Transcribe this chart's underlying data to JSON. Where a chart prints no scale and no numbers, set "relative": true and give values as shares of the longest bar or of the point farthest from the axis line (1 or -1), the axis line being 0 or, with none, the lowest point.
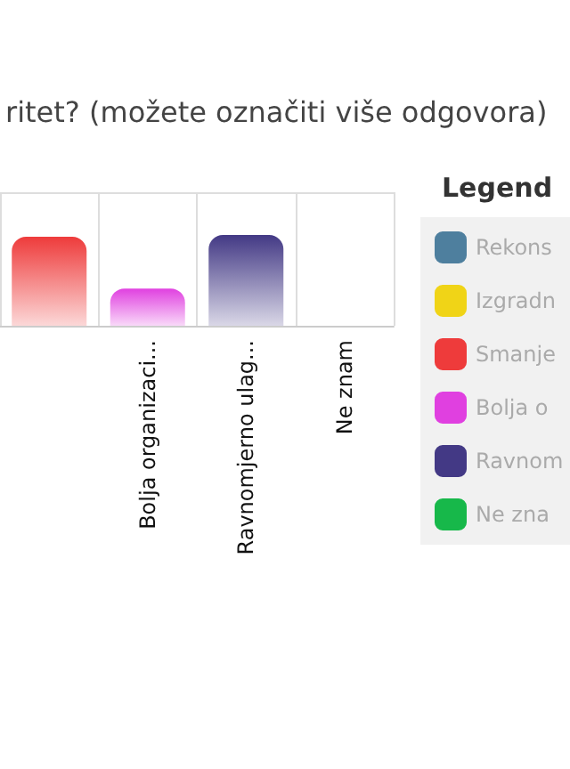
{
  "chart_data": {
    "type": "bar",
    "title": "ritet? (možete označiti više odgovora)",
    "legend_title": "Legend",
    "relative": true,
    "stacked": true,
    "grid": true,
    "legend": "right",
    "categories": [
      null,
      "Bolja organizaci...",
      "Ravnomjerno ulag...",
      "Ne znam"
    ],
    "series": [
      {
        "name": "Rekons",
        "color": "#4e7f9e",
        "values": [
          null,
          null,
          null,
          null
        ]
      },
      {
        "name": "Izgradn",
        "color": "#f0d417",
        "values": [
          null,
          null,
          null,
          null
        ]
      },
      {
        "name": "Smanje",
        "color": "#ee3b3b",
        "values": [
          0.98,
          null,
          null,
          null
        ]
      },
      {
        "name": "Bolja o",
        "color": "#e040e0",
        "values": [
          null,
          0.41,
          null,
          null
        ]
      },
      {
        "name": "Ravnom",
        "color": "#433985",
        "values": [
          null,
          null,
          1,
          null
        ]
      },
      {
        "name": "Ne zna",
        "color": "#17b84a",
        "values": [
          null,
          null,
          null,
          0
        ]
      }
    ]
  }
}
